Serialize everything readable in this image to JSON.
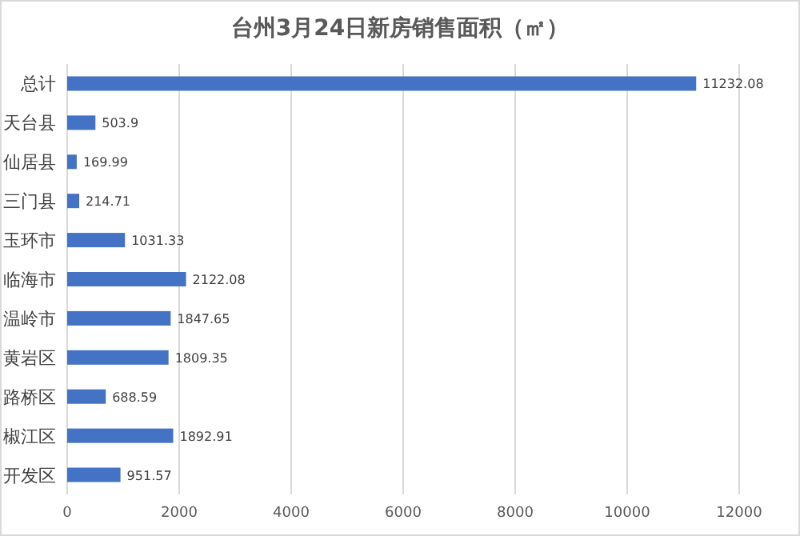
{
  "chart_data": {
    "type": "bar",
    "orientation": "horizontal",
    "title": "台州3月24日新房销售面积（㎡）",
    "categories": [
      "总计",
      "天台县",
      "仙居县",
      "三门县",
      "玉环市",
      "临海市",
      "温岭市",
      "黄岩区",
      "路桥区",
      "椒江区",
      "开发区"
    ],
    "values": [
      11232.08,
      503.9,
      169.99,
      214.71,
      1031.33,
      2122.08,
      1847.65,
      1809.35,
      688.59,
      1892.91,
      951.57
    ],
    "color": "#4472c4",
    "xlim": [
      0,
      12000
    ],
    "xticks": [
      0,
      2000,
      4000,
      6000,
      8000,
      10000,
      12000
    ],
    "grid": "x",
    "data_labels": true
  }
}
